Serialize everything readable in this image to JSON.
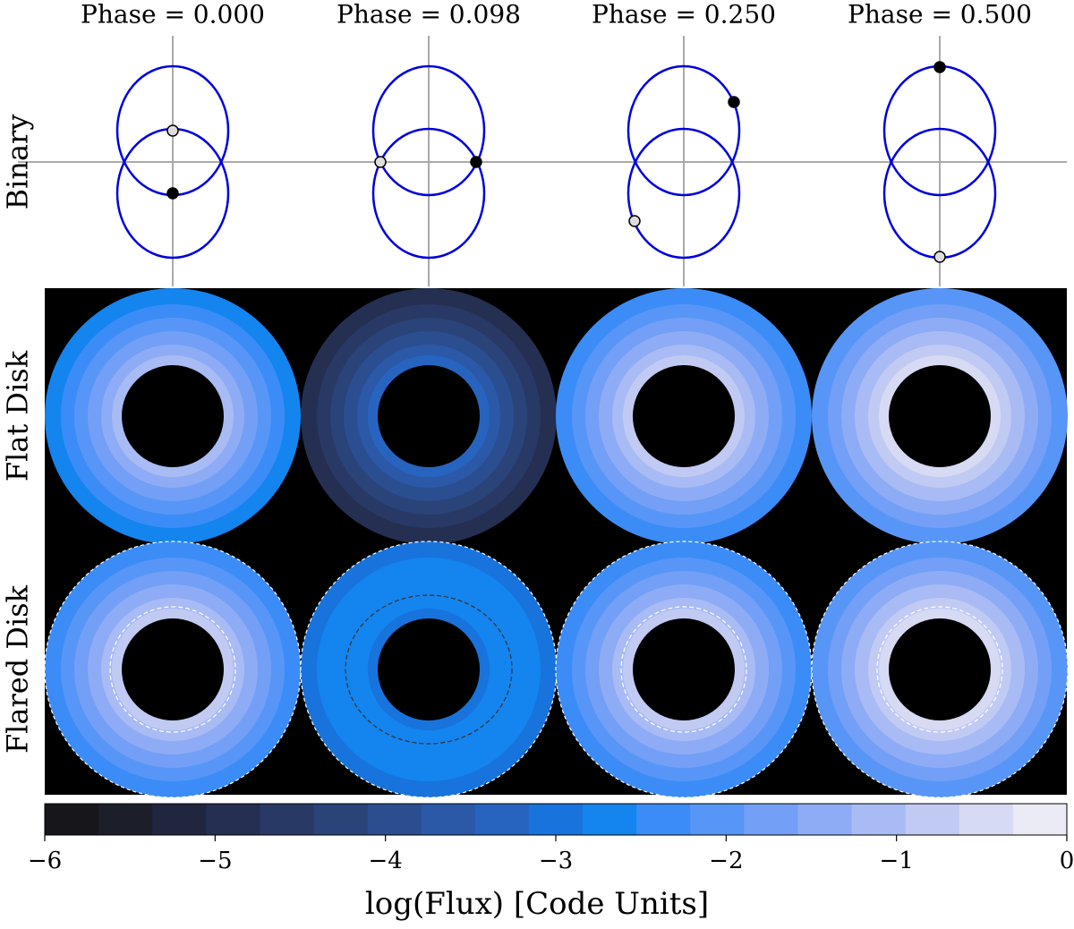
{
  "panels": {
    "phases": [
      "Phase = 0.000",
      "Phase = 0.098",
      "Phase = 0.250",
      "Phase = 0.500"
    ],
    "rows": [
      "Binary",
      "Flat Disk",
      "Flared Disk"
    ]
  },
  "chart_data": {
    "type": "colorbar",
    "title": "log(Flux) [Code Units]",
    "xlim": [
      -6,
      0
    ],
    "xticks": [
      {
        "value": -6,
        "label": "−6"
      },
      {
        "value": -5,
        "label": "−5"
      },
      {
        "value": -4,
        "label": "−4"
      },
      {
        "value": -3,
        "label": "−3"
      },
      {
        "value": -2,
        "label": "−2"
      },
      {
        "value": -1,
        "label": "−1"
      },
      0
    ],
    "colors": [
      "#17171b",
      "#1c1e2a",
      "#20263e",
      "#242f52",
      "#283965",
      "#2a4379",
      "#2b4e90",
      "#2b59a8",
      "#2764c0",
      "#1873dc",
      "#1484ee",
      "#3b8cf7",
      "#5796f7",
      "#739ff6",
      "#8eacf5",
      "#a8bbf4",
      "#c1caf3",
      "#d7daf3",
      "#ebebf5"
    ]
  }
}
